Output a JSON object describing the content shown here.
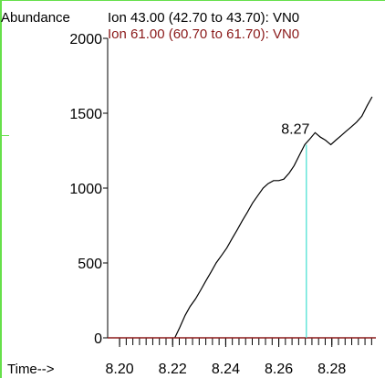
{
  "chart_data": {
    "type": "line",
    "ylabel": "Abundance",
    "xlabel": "Time-->",
    "legend": [
      {
        "label": "Ion  43.00 (42.70 to 43.70): VN0",
        "color": "#000000"
      },
      {
        "label": "Ion  61.00 (60.70 to 61.70): VN0",
        "color": "#8b1a1a"
      }
    ],
    "x_ticks": [
      "8.20",
      "8.22",
      "8.24",
      "8.26",
      "8.28"
    ],
    "x_tick_values": [
      8.2,
      8.22,
      8.24,
      8.26,
      8.28
    ],
    "y_ticks": [
      "0",
      "500",
      "1000",
      "1500",
      "2000"
    ],
    "y_tick_values": [
      0,
      500,
      1000,
      1500,
      2000
    ],
    "xlim": [
      8.1955,
      8.2966
    ],
    "ylim": [
      0,
      2000
    ],
    "series": [
      {
        "name": "Ion  43.00 (42.70 to 43.70): VN0",
        "color": "#000000",
        "x": [
          8.2208,
          8.2227,
          8.2247,
          8.2266,
          8.2286,
          8.2306,
          8.2325,
          8.2345,
          8.2364,
          8.2384,
          8.2404,
          8.2423,
          8.2443,
          8.2462,
          8.2482,
          8.2501,
          8.2521,
          8.2541,
          8.256,
          8.258,
          8.26,
          8.2619,
          8.2639,
          8.2658,
          8.2678,
          8.2698,
          8.2718,
          8.2737,
          8.2757,
          8.2776,
          8.2796,
          8.2815,
          8.2835,
          8.2854,
          8.2874,
          8.2893,
          8.2913,
          8.2933,
          8.2952
        ],
        "y": [
          0,
          70,
          150,
          210,
          260,
          320,
          380,
          440,
          500,
          550,
          600,
          660,
          720,
          780,
          840,
          900,
          950,
          1000,
          1030,
          1050,
          1050,
          1060,
          1100,
          1150,
          1220,
          1290,
          1330,
          1370,
          1340,
          1320,
          1290,
          1320,
          1350,
          1380,
          1410,
          1440,
          1480,
          1550,
          1610
        ]
      },
      {
        "name": "Ion  61.00 (60.70 to 61.70): VN0",
        "color": "#8b1a1a",
        "x": [
          8.1955,
          8.2966
        ],
        "y": [
          0,
          0
        ]
      }
    ],
    "annotations": [
      {
        "text": "8.27",
        "x": 8.2704,
        "marker_color": "#40e0d0"
      }
    ]
  }
}
